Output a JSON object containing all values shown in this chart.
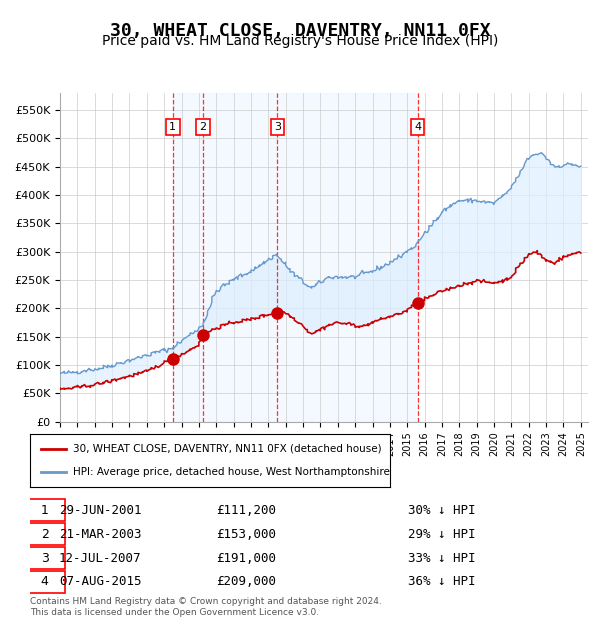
{
  "title": "30, WHEAT CLOSE, DAVENTRY, NN11 0FX",
  "subtitle": "Price paid vs. HM Land Registry's House Price Index (HPI)",
  "title_fontsize": 13,
  "subtitle_fontsize": 10,
  "background_color": "#ffffff",
  "plot_bg_color": "#ffffff",
  "grid_color": "#cccccc",
  "ylabel_format": "£{0}K",
  "ylim": [
    0,
    580000
  ],
  "yticks": [
    0,
    50000,
    100000,
    150000,
    200000,
    250000,
    300000,
    350000,
    400000,
    450000,
    500000,
    550000
  ],
  "ytick_labels": [
    "£0",
    "£50K",
    "£100K",
    "£150K",
    "£200K",
    "£250K",
    "£300K",
    "£350K",
    "£400K",
    "£450K",
    "£500K",
    "£550K"
  ],
  "sale_dates": [
    "2001-06-29",
    "2003-03-21",
    "2007-07-12",
    "2015-08-07"
  ],
  "sale_prices": [
    111200,
    153000,
    191000,
    209000
  ],
  "sale_labels": [
    "1",
    "2",
    "3",
    "4"
  ],
  "sale_color": "#cc0000",
  "hpi_color": "#6699cc",
  "hpi_fill_color": "#ddeeff",
  "dashed_line_color": "#ff0000",
  "legend_sale_label": "30, WHEAT CLOSE, DAVENTRY, NN11 0FX (detached house)",
  "legend_hpi_label": "HPI: Average price, detached house, West Northamptonshire",
  "table_rows": [
    {
      "label": "1",
      "date": "29-JUN-2001",
      "price": "£111,200",
      "pct": "30% ↓ HPI"
    },
    {
      "label": "2",
      "date": "21-MAR-2003",
      "price": "£153,000",
      "pct": "29% ↓ HPI"
    },
    {
      "label": "3",
      "date": "12-JUL-2007",
      "price": "£191,000",
      "pct": "33% ↓ HPI"
    },
    {
      "label": "4",
      "date": "07-AUG-2015",
      "price": "£209,000",
      "pct": "36% ↓ HPI"
    }
  ],
  "footer_text": "Contains HM Land Registry data © Crown copyright and database right 2024.\nThis data is licensed under the Open Government Licence v3.0."
}
